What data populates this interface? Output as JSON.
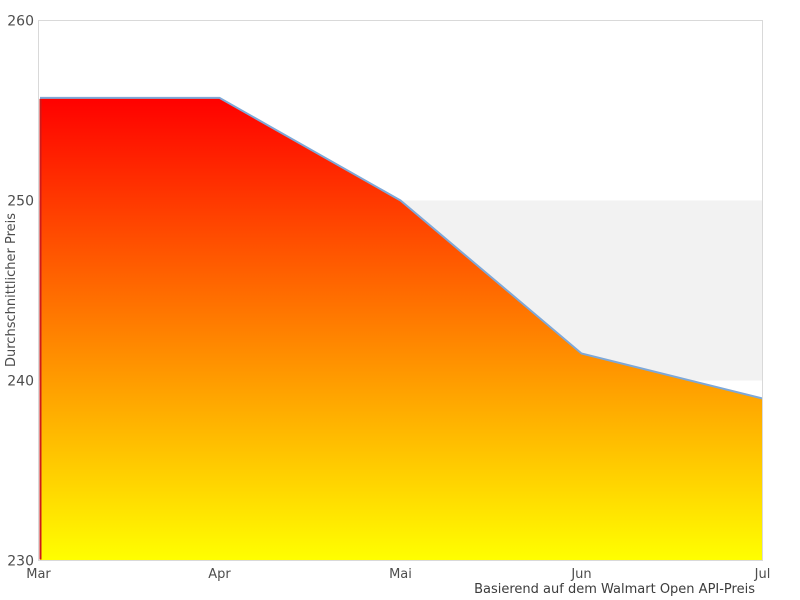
{
  "chart_data": {
    "type": "area",
    "categories": [
      "Mar",
      "Apr",
      "Mai",
      "Jun",
      "Jul"
    ],
    "values": [
      255.7,
      255.7,
      250.0,
      241.5,
      239.0
    ],
    "title": "",
    "xlabel": "",
    "ylabel": "Durchschnittlicher Preis",
    "caption": "Basierend auf dem Walmart Open API-Preis",
    "ylim": [
      230,
      260
    ],
    "yticks": [
      230,
      240,
      250,
      260
    ],
    "grid": false,
    "legend": "none",
    "plot_band": {
      "from": 240,
      "to": 250,
      "color": "#f2f2f2"
    },
    "colors": {
      "line": "#7ea8d8",
      "area_gradient_top": "#ff0000",
      "area_gradient_bottom": "#ffff00",
      "first_point_edge": "#cc1a1a",
      "plot_border": "#d9d9d9",
      "tick_text": "#4d4d4d",
      "background": "#ffffff"
    }
  }
}
